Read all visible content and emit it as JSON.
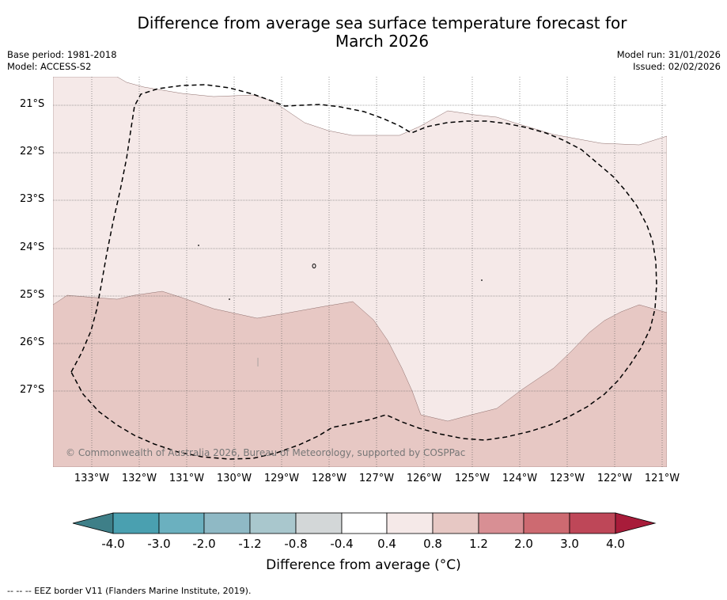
{
  "title": {
    "line1": "Difference from average sea surface temperature forecast for",
    "line2": "March 2026"
  },
  "meta": {
    "base_period": "Base period: 1981-2018",
    "model": "Model: ACCESS-S2",
    "model_run": "Model run: 31/01/2026",
    "issued": "Issued: 02/02/2026"
  },
  "map": {
    "lat_labels": [
      "21°S",
      "22°S",
      "23°S",
      "24°S",
      "25°S",
      "26°S",
      "27°S"
    ],
    "lon_labels": [
      "133°W",
      "132°W",
      "131°W",
      "130°W",
      "129°W",
      "128°W",
      "127°W",
      "126°W",
      "125°W",
      "124°W",
      "123°W",
      "122°W",
      "121°W"
    ],
    "copyright": "© Commonwealth of Australia 2026, Bureau of Meteorology, supported by COSPPac",
    "colors": {
      "band_0_4_to_0_8": "#f5e9e8",
      "band_0_8_to_1_2": "#e7c8c4",
      "grid": "#555555"
    }
  },
  "colorbar": {
    "ticks": [
      "-4.0",
      "-3.0",
      "-2.0",
      "-1.2",
      "-0.8",
      "-0.4",
      "0.4",
      "0.8",
      "1.2",
      "2.0",
      "3.0",
      "4.0"
    ],
    "colors": [
      "#3e7f88",
      "#4aa0b0",
      "#6bb0bf",
      "#8fb9c5",
      "#a9c7cd",
      "#d3d7d8",
      "#ffffff",
      "#f5e9e8",
      "#e7c8c4",
      "#d88f94",
      "#cd6a71",
      "#be4758",
      "#a81c3a"
    ],
    "title": "Difference from average (°C)"
  },
  "footnote": "--  --  -- EEZ border V11 (Flanders Marine Institute, 2019)."
}
